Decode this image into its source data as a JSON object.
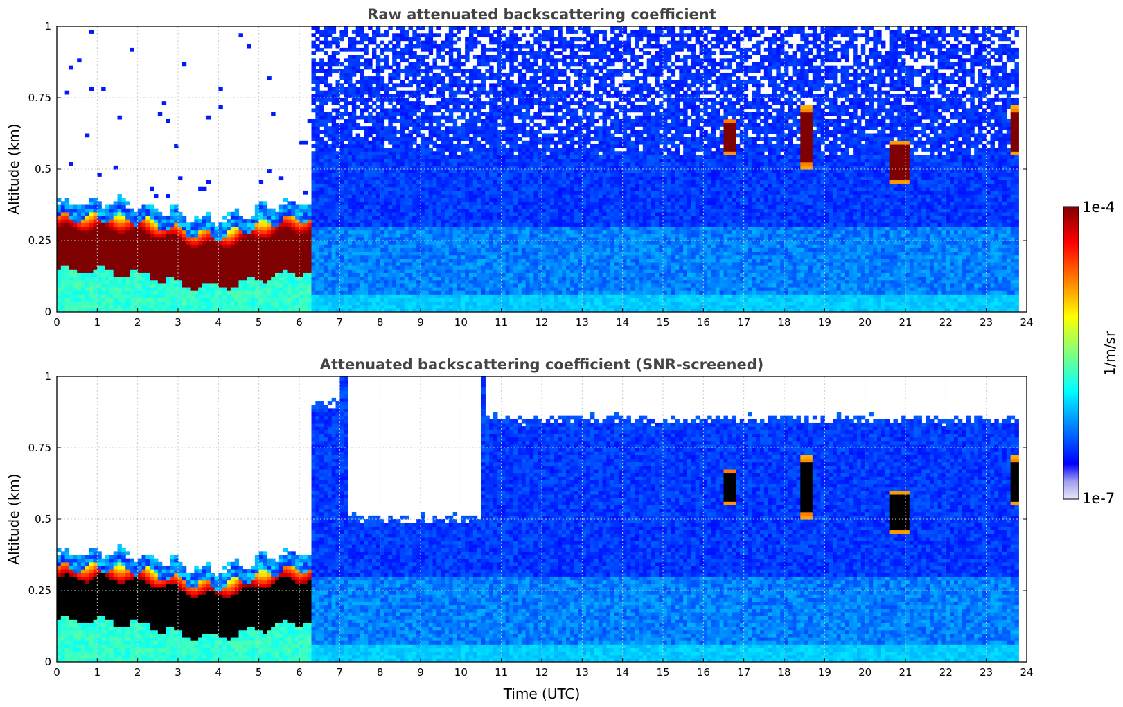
{
  "colors": {
    "jet": [
      "#00007f",
      "#0000ff",
      "#007fff",
      "#00ffff",
      "#7fff7f",
      "#ffff00",
      "#ff7f00",
      "#ff0000",
      "#7f0000"
    ],
    "saturated_raw": "#7f0000",
    "saturated_screened": "#000000",
    "colorbar_low": "#e8e8f8"
  },
  "colorbar": {
    "label": "1/m/sr",
    "max_label": "1e-4",
    "min_label": "1e-7",
    "scale": "log",
    "range": [
      1e-07,
      0.0001
    ]
  },
  "xlabel": "Time (UTC)",
  "chart_data": [
    {
      "type": "heatmap",
      "title": "Raw attenuated backscattering coefficient",
      "ylabel": "Altitude (km)",
      "xlim": [
        0,
        24
      ],
      "ylim": [
        0,
        1
      ],
      "x_ticks": [
        "0",
        "1",
        "2",
        "3",
        "4",
        "5",
        "6",
        "7",
        "8",
        "9",
        "10",
        "11",
        "12",
        "13",
        "14",
        "15",
        "16",
        "17",
        "18",
        "19",
        "20",
        "21",
        "22",
        "23",
        "24"
      ],
      "y_ticks": [
        "0",
        "0.25",
        "0.5",
        "0.75",
        "1"
      ],
      "grid": true,
      "screened": false,
      "features": [
        {
          "kind": "boundary_layer_top",
          "time_range": [
            0,
            6.3
          ],
          "altitude_km": [
            0.12,
            0.35
          ]
        },
        {
          "kind": "noise_onset",
          "time_utc": 6.3
        },
        {
          "kind": "cloud",
          "time_range": [
            16.55,
            16.75
          ],
          "altitude_km": [
            0.55,
            0.68
          ]
        },
        {
          "kind": "cloud",
          "time_range": [
            18.35,
            18.7
          ],
          "altitude_km": [
            0.5,
            0.72
          ]
        },
        {
          "kind": "cloud",
          "time_range": [
            20.6,
            21.05
          ],
          "altitude_km": [
            0.45,
            0.6
          ]
        },
        {
          "kind": "cloud",
          "time_range": [
            23.65,
            23.8
          ],
          "altitude_km": [
            0.55,
            0.72
          ]
        }
      ]
    },
    {
      "type": "heatmap",
      "title": "Attenuated backscattering coefficient (SNR-screened)",
      "ylabel": "Altitude (km)",
      "xlim": [
        0,
        24
      ],
      "ylim": [
        0,
        1
      ],
      "x_ticks": [
        "0",
        "1",
        "2",
        "3",
        "4",
        "5",
        "6",
        "7",
        "8",
        "9",
        "10",
        "11",
        "12",
        "13",
        "14",
        "15",
        "16",
        "17",
        "18",
        "19",
        "20",
        "21",
        "22",
        "23",
        "24"
      ],
      "y_ticks": [
        "0",
        "0.25",
        "0.5",
        "0.75",
        "1"
      ],
      "grid": true,
      "screened": true,
      "features": [
        {
          "kind": "boundary_layer_top",
          "time_range": [
            0,
            6.3
          ],
          "altitude_km": [
            0.12,
            0.35
          ]
        },
        {
          "kind": "screen_top",
          "time_range": [
            6.3,
            7.0
          ],
          "altitude_km": 0.9
        },
        {
          "kind": "screen_top",
          "time_range": [
            7.2,
            10.5
          ],
          "altitude_km": 0.5
        },
        {
          "kind": "screen_top",
          "time_range": [
            10.6,
            23.8
          ],
          "altitude_km": 0.85
        },
        {
          "kind": "cloud",
          "time_range": [
            16.55,
            16.75
          ],
          "altitude_km": [
            0.55,
            0.68
          ]
        },
        {
          "kind": "cloud",
          "time_range": [
            18.35,
            18.7
          ],
          "altitude_km": [
            0.5,
            0.72
          ]
        },
        {
          "kind": "cloud",
          "time_range": [
            20.6,
            21.05
          ],
          "altitude_km": [
            0.45,
            0.6
          ]
        },
        {
          "kind": "cloud",
          "time_range": [
            23.65,
            23.8
          ],
          "altitude_km": [
            0.55,
            0.72
          ]
        }
      ]
    }
  ]
}
